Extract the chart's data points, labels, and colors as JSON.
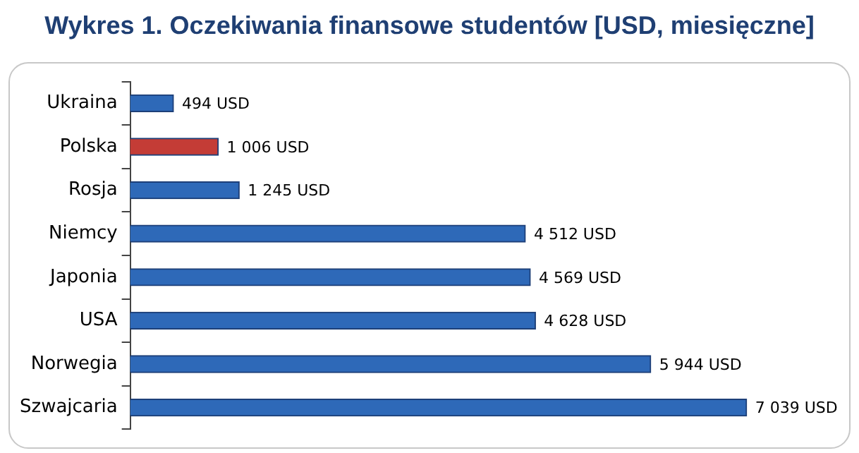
{
  "chart_data": {
    "type": "bar",
    "orientation": "horizontal",
    "title": "Wykres 1. Oczekiwania finansowe studentów [USD, miesięczne]",
    "categories": [
      "Ukraina",
      "Polska",
      "Rosja",
      "Niemcy",
      "Japonia",
      "USA",
      "Norwegia",
      "Szwajcaria"
    ],
    "values": [
      494,
      1006,
      1245,
      4512,
      4569,
      4628,
      5944,
      7039
    ],
    "colors": [
      "#2e69b8",
      "#c43c36",
      "#2e69b8",
      "#2e69b8",
      "#2e69b8",
      "#2e69b8",
      "#2e69b8",
      "#2e69b8"
    ],
    "value_labels": [
      "494 USD",
      "1 006 USD",
      "1 245 USD",
      "4 512 USD",
      "4 569 USD",
      "4 628 USD",
      "5 944 USD",
      "7 039 USD"
    ],
    "legend": false
  }
}
